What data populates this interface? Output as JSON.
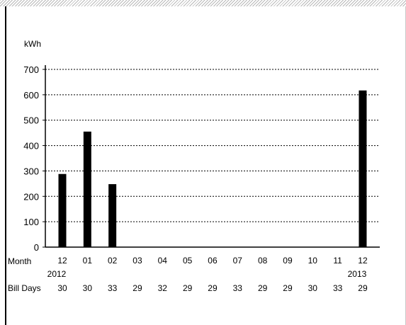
{
  "chart_data": {
    "type": "bar",
    "ylabel": "kWh",
    "ylim": [
      0,
      700
    ],
    "yticks": [
      0,
      100,
      200,
      300,
      400,
      500,
      600,
      700
    ],
    "grid": true,
    "row_labels": {
      "month": "Month",
      "bill_days": "Bill Days"
    },
    "categories": [
      "12",
      "01",
      "02",
      "03",
      "04",
      "05",
      "06",
      "07",
      "08",
      "09",
      "10",
      "11",
      "12"
    ],
    "years": [
      "2012",
      "",
      "",
      "",
      "",
      "",
      "",
      "",
      "",
      "",
      "",
      "",
      "2013"
    ],
    "values": [
      288,
      455,
      248,
      0,
      0,
      0,
      0,
      0,
      0,
      0,
      0,
      0,
      617
    ],
    "bill_days": [
      "30",
      "30",
      "33",
      "29",
      "32",
      "29",
      "29",
      "33",
      "29",
      "29",
      "30",
      "33",
      "29"
    ],
    "bar_color": "#000000"
  }
}
